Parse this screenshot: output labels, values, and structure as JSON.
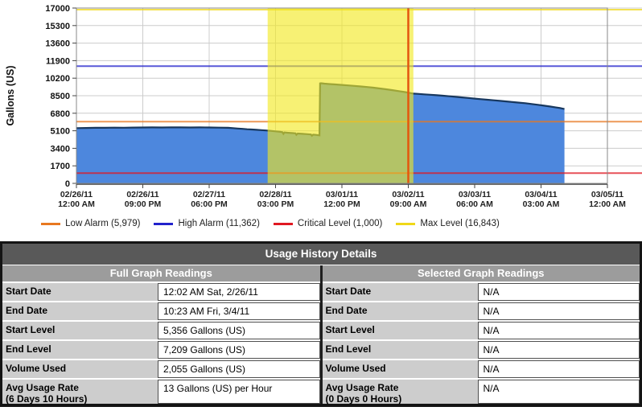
{
  "chart_data": {
    "type": "area",
    "ylabel": "Gallons (US)",
    "ylim": [
      0,
      17000
    ],
    "y_ticks": [
      0,
      1700,
      3400,
      5100,
      6800,
      8500,
      10200,
      11900,
      13600,
      15300,
      17000
    ],
    "x_span_hours": 168,
    "x_ticks": [
      {
        "date": "02/26/11",
        "time": "12:00 AM"
      },
      {
        "date": "02/26/11",
        "time": "09:00 PM"
      },
      {
        "date": "02/27/11",
        "time": "06:00 PM"
      },
      {
        "date": "02/28/11",
        "time": "03:00 PM"
      },
      {
        "date": "03/01/11",
        "time": "12:00 PM"
      },
      {
        "date": "03/02/11",
        "time": "09:00 AM"
      },
      {
        "date": "03/03/11",
        "time": "06:00 AM"
      },
      {
        "date": "03/04/11",
        "time": "03:00 AM"
      },
      {
        "date": "03/05/11",
        "time": "12:00 AM"
      }
    ],
    "grid": true,
    "legend_position": "bottom",
    "series": [
      {
        "name": "tank-level",
        "fill": "#4d87dd",
        "stroke": "#17375e",
        "points_hours_gallons": [
          [
            0,
            5356
          ],
          [
            3,
            5372
          ],
          [
            6,
            5385
          ],
          [
            9,
            5392
          ],
          [
            12,
            5402
          ],
          [
            15,
            5398
          ],
          [
            18,
            5415
          ],
          [
            21,
            5420
          ],
          [
            24,
            5428
          ],
          [
            27,
            5422
          ],
          [
            30,
            5432
          ],
          [
            33,
            5426
          ],
          [
            36,
            5418
          ],
          [
            39,
            5424
          ],
          [
            42,
            5416
          ],
          [
            45,
            5408
          ],
          [
            48,
            5392
          ],
          [
            49.5,
            5360
          ],
          [
            51,
            5322
          ],
          [
            52.5,
            5288
          ],
          [
            54,
            5252
          ],
          [
            55.5,
            5222
          ],
          [
            57,
            5192
          ],
          [
            58.5,
            5162
          ],
          [
            60,
            5128
          ],
          [
            61.5,
            5092
          ],
          [
            63,
            5046
          ],
          [
            64.5,
            4996
          ],
          [
            65.2,
            4962
          ],
          [
            65.5,
            4800
          ],
          [
            65.8,
            4936
          ],
          [
            67,
            4908
          ],
          [
            68.5,
            4872
          ],
          [
            69.3,
            4852
          ],
          [
            69.6,
            4712
          ],
          [
            70,
            4836
          ],
          [
            71.5,
            4800
          ],
          [
            73,
            4770
          ],
          [
            74.2,
            4742
          ],
          [
            74.5,
            4618
          ],
          [
            74.9,
            4726
          ],
          [
            75.8,
            4700
          ],
          [
            76.6,
            4672
          ],
          [
            76.9,
            4658
          ],
          [
            77.1,
            9692
          ],
          [
            77.4,
            9712
          ],
          [
            78.5,
            9672
          ],
          [
            80,
            9632
          ],
          [
            82,
            9590
          ],
          [
            84,
            9546
          ],
          [
            86,
            9498
          ],
          [
            88,
            9448
          ],
          [
            90,
            9396
          ],
          [
            92,
            9340
          ],
          [
            94,
            9276
          ],
          [
            96,
            9204
          ],
          [
            98,
            9126
          ],
          [
            100,
            9040
          ],
          [
            102,
            8944
          ],
          [
            104,
            8848
          ],
          [
            105.5,
            8768
          ],
          [
            106.6,
            8706
          ],
          [
            108,
            8678
          ],
          [
            110,
            8636
          ],
          [
            112,
            8594
          ],
          [
            114,
            8546
          ],
          [
            116,
            8498
          ],
          [
            118,
            8444
          ],
          [
            120,
            8392
          ],
          [
            122,
            8334
          ],
          [
            124,
            8280
          ],
          [
            126,
            8222
          ],
          [
            128,
            8168
          ],
          [
            130,
            8110
          ],
          [
            132,
            8056
          ],
          [
            134,
            7998
          ],
          [
            136,
            7944
          ],
          [
            138,
            7886
          ],
          [
            140,
            7832
          ],
          [
            142,
            7774
          ],
          [
            144,
            7700
          ],
          [
            146,
            7618
          ],
          [
            148,
            7532
          ],
          [
            150,
            7448
          ],
          [
            151.5,
            7380
          ],
          [
            153,
            7308
          ],
          [
            154.4,
            7209
          ]
        ]
      }
    ],
    "thresholds": [
      {
        "name": "low-alarm",
        "label": "Low Alarm (5,979)",
        "value": 5979,
        "color": "#e87820"
      },
      {
        "name": "high-alarm",
        "label": "High Alarm (11,362)",
        "value": 11362,
        "color": "#2222cc"
      },
      {
        "name": "critical-level",
        "label": "Critical Level (1,000)",
        "value": 1000,
        "color": "#e01822"
      },
      {
        "name": "max-level",
        "label": "Max Level (16,843)",
        "value": 16843,
        "color": "#f0d818"
      }
    ],
    "selection": {
      "start_hour": 60.5,
      "end_hour": 106.6,
      "band_color": "rgba(242,232,30,0.62)",
      "marker_hour": 105,
      "marker_color": "#e4560e"
    }
  },
  "table": {
    "title": "Usage History Details",
    "full_header": "Full Graph Readings",
    "selected_header": "Selected Graph Readings",
    "rows": [
      {
        "label": "Start Date",
        "full": "12:02 AM Sat, 2/26/11",
        "selected": "N/A"
      },
      {
        "label": "End Date",
        "full": "10:23 AM Fri, 3/4/11",
        "selected": "N/A"
      },
      {
        "label": "Start Level",
        "full": "5,356 Gallons (US)",
        "selected": "N/A"
      },
      {
        "label": "End Level",
        "full": "7,209 Gallons (US)",
        "selected": "N/A"
      },
      {
        "label": "Volume Used",
        "full": "2,055 Gallons (US)",
        "selected": "N/A"
      },
      {
        "label": "Avg Usage Rate",
        "full_label_sub": "(6 Days 10 Hours)",
        "selected_label_sub": "(0 Days 0 Hours)",
        "full": "13 Gallons (US) per Hour",
        "selected": "N/A"
      }
    ]
  }
}
